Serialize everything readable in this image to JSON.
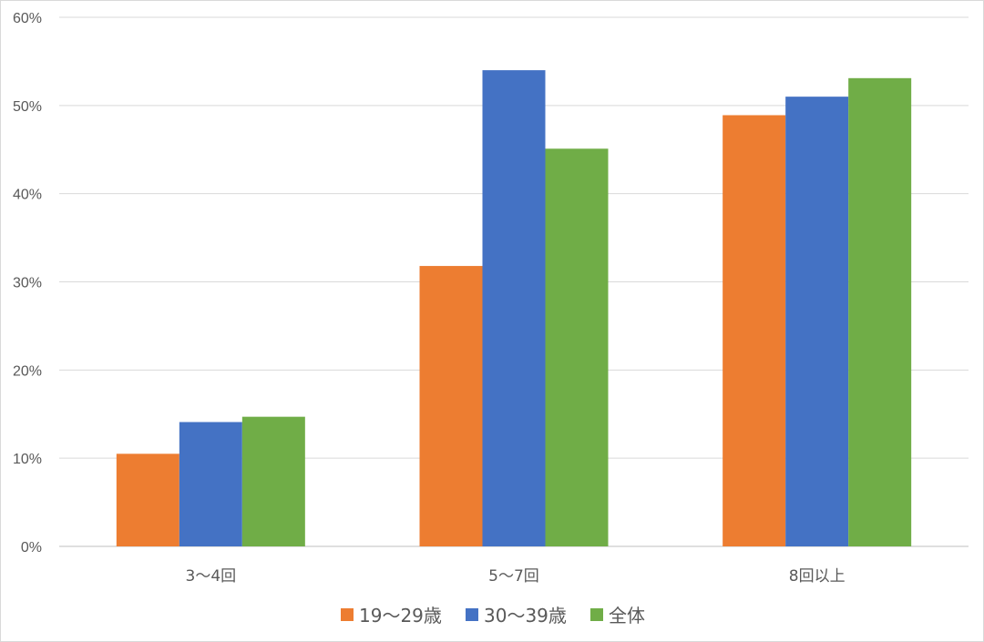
{
  "chart_data": {
    "type": "bar",
    "title": "",
    "xlabel": "",
    "ylabel": "",
    "categories": [
      "3～4回",
      "5～7回",
      "8回以上"
    ],
    "series": [
      {
        "name": "19～29歳",
        "color": "#ED7D31",
        "values": [
          10.5,
          31.8,
          48.9
        ]
      },
      {
        "name": "30～39歳",
        "color": "#4472C4",
        "values": [
          14.1,
          54.0,
          51.0
        ]
      },
      {
        "name": "全体",
        "color": "#70AD47",
        "values": [
          14.7,
          45.1,
          53.1
        ]
      }
    ],
    "ylim": [
      0,
      60
    ],
    "yticks": [
      "0%",
      "10%",
      "20%",
      "30%",
      "40%",
      "50%",
      "60%"
    ],
    "grid": true,
    "legend": "bottom"
  }
}
